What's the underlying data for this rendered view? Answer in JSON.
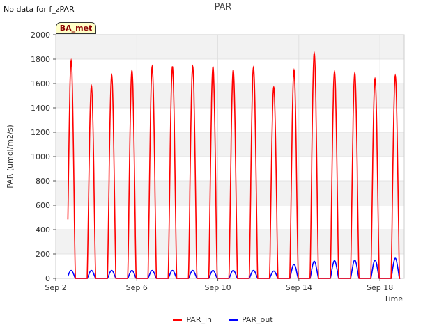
{
  "status_text": "No data for f_zPAR",
  "badge_label": "BA_met",
  "colors": {
    "PAR_in": "#ff0000",
    "PAR_out": "#0000ff",
    "band": "#f2f2f2",
    "grid": "#dddddd"
  },
  "chart_data": {
    "type": "line",
    "title": "PAR",
    "xlabel": "Time",
    "ylabel": "PAR (umol/m2/s)",
    "xlim": [
      2.0,
      19.2
    ],
    "ylim": [
      0,
      2000
    ],
    "yticks": [
      0,
      200,
      400,
      600,
      800,
      1000,
      1200,
      1400,
      1600,
      1800,
      2000
    ],
    "xticks": [
      {
        "value": 2,
        "label": "Sep 2"
      },
      {
        "value": 6,
        "label": "Sep 6"
      },
      {
        "value": 10,
        "label": "Sep 10"
      },
      {
        "value": 14,
        "label": "Sep 14"
      },
      {
        "value": 18,
        "label": "Sep 18"
      }
    ],
    "series": [
      {
        "name": "PAR_in",
        "description": "Daily peaks (umol/m2/s), x = day of September at solar noon",
        "days": [
          2.8,
          3.8,
          4.8,
          5.8,
          6.8,
          7.8,
          8.8,
          9.8,
          10.8,
          11.8,
          12.8,
          13.8,
          14.8,
          15.8,
          16.8,
          17.8,
          18.8
        ],
        "peaks": [
          1790,
          1580,
          1670,
          1705,
          1740,
          1740,
          1740,
          1735,
          1710,
          1730,
          1570,
          1710,
          1850,
          1695,
          1685,
          1640,
          1665
        ]
      },
      {
        "name": "PAR_out",
        "description": "Daily peaks (umol/m2/s)",
        "days": [
          2.8,
          3.8,
          4.8,
          5.8,
          6.8,
          7.8,
          8.8,
          9.8,
          10.8,
          11.8,
          12.8,
          13.8,
          14.8,
          15.8,
          16.8,
          17.8,
          18.8
        ],
        "peaks": [
          65,
          65,
          65,
          65,
          65,
          65,
          65,
          65,
          65,
          65,
          60,
          115,
          140,
          145,
          150,
          150,
          165
        ]
      }
    ]
  }
}
